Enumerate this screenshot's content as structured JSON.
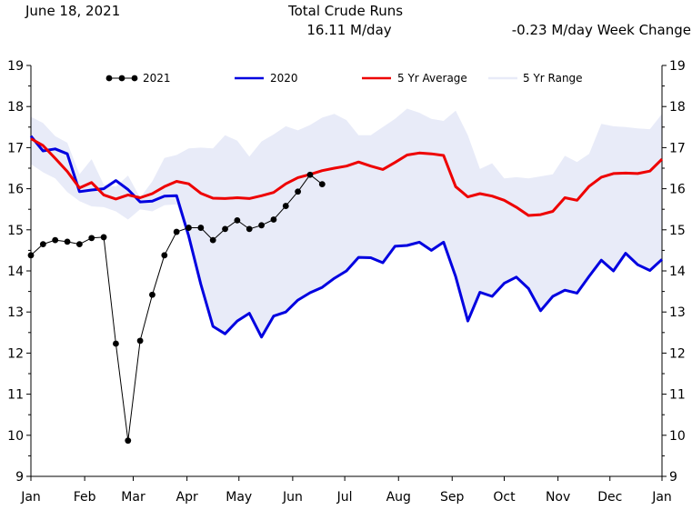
{
  "header": {
    "date": "June 18, 2021",
    "title": "Total Crude Runs",
    "value": "16.11 M/day",
    "week_change": "-0.23 M/day Week Change"
  },
  "chart_data": {
    "type": "line",
    "title": "Total Crude Runs",
    "xlabel": "",
    "ylabel": "",
    "x_range_weeks": [
      0,
      52
    ],
    "ylim": [
      9,
      19
    ],
    "yticks": [
      9,
      10,
      11,
      12,
      13,
      14,
      15,
      16,
      17,
      18,
      19
    ],
    "month_ticks": [
      {
        "label": "Jan",
        "week": 0
      },
      {
        "label": "Feb",
        "week": 4.43
      },
      {
        "label": "Mar",
        "week": 8.43
      },
      {
        "label": "Apr",
        "week": 12.86
      },
      {
        "label": "May",
        "week": 17.14
      },
      {
        "label": "Jun",
        "week": 21.57
      },
      {
        "label": "Jul",
        "week": 25.86
      },
      {
        "label": "Aug",
        "week": 30.29
      },
      {
        "label": "Sep",
        "week": 34.71
      },
      {
        "label": "Oct",
        "week": 39.0
      },
      {
        "label": "Nov",
        "week": 43.43
      },
      {
        "label": "Dec",
        "week": 47.71
      },
      {
        "label": "Jan",
        "week": 52.14
      }
    ],
    "legend": [
      "2021",
      "2020",
      "5 Yr Average",
      "5 Yr Range"
    ],
    "legend_position": "top",
    "colors": {
      "y2021": "#000000",
      "y2020": "#0000e0",
      "avg": "#ee0000",
      "range": "#e8ebf8"
    },
    "series": [
      {
        "name": "2021",
        "x": [
          0,
          1,
          2,
          3,
          4,
          5,
          6,
          7,
          8,
          9,
          10,
          11,
          12,
          13,
          14,
          15,
          16,
          17,
          18,
          19,
          20,
          21,
          22,
          23,
          24
        ],
        "values": [
          14.38,
          14.65,
          14.75,
          14.71,
          14.65,
          14.8,
          14.82,
          12.23,
          9.87,
          12.3,
          13.42,
          14.38,
          14.95,
          15.05,
          15.05,
          14.75,
          15.02,
          15.23,
          15.02,
          15.11,
          15.25,
          15.58,
          15.93,
          16.34,
          16.11
        ]
      },
      {
        "name": "2020",
        "x": [
          0,
          1,
          2,
          3,
          4,
          5,
          6,
          7,
          8,
          9,
          10,
          11,
          12,
          13,
          14,
          15,
          16,
          17,
          18,
          19,
          20,
          21,
          22,
          23,
          24,
          25,
          26,
          27,
          28,
          29,
          30,
          31,
          32,
          33,
          34,
          35,
          36,
          37,
          38,
          39,
          40,
          41,
          42,
          43,
          44,
          45,
          46,
          47,
          48,
          49,
          50,
          51,
          52
        ],
        "values": [
          17.28,
          16.92,
          16.97,
          16.85,
          15.93,
          15.97,
          16.0,
          16.2,
          15.98,
          15.68,
          15.7,
          15.82,
          15.83,
          14.85,
          13.68,
          12.65,
          12.47,
          12.78,
          12.97,
          12.39,
          12.9,
          13.0,
          13.29,
          13.47,
          13.6,
          13.82,
          14.0,
          14.33,
          14.32,
          14.2,
          14.6,
          14.62,
          14.7,
          14.5,
          14.7,
          13.86,
          12.78,
          13.48,
          13.38,
          13.7,
          13.85,
          13.57,
          13.03,
          13.38,
          13.53,
          13.46,
          13.87,
          14.26,
          14.0,
          14.43,
          14.15,
          14.01,
          14.28
        ]
      },
      {
        "name": "5 Yr Average",
        "x": [
          0,
          1,
          2,
          3,
          4,
          5,
          6,
          7,
          8,
          9,
          10,
          11,
          12,
          13,
          14,
          15,
          16,
          17,
          18,
          19,
          20,
          21,
          22,
          23,
          24,
          25,
          26,
          27,
          28,
          29,
          30,
          31,
          32,
          33,
          34,
          35,
          36,
          37,
          38,
          39,
          40,
          41,
          42,
          43,
          44,
          45,
          46,
          47,
          48,
          49,
          50,
          51,
          52
        ],
        "values": [
          17.22,
          17.05,
          16.74,
          16.42,
          16.02,
          16.15,
          15.85,
          15.75,
          15.85,
          15.78,
          15.88,
          16.05,
          16.18,
          16.12,
          15.89,
          15.77,
          15.76,
          15.78,
          15.76,
          15.83,
          15.91,
          16.12,
          16.27,
          16.35,
          16.44,
          16.5,
          16.55,
          16.65,
          16.55,
          16.47,
          16.64,
          16.82,
          16.87,
          16.85,
          16.81,
          16.05,
          15.8,
          15.88,
          15.82,
          15.72,
          15.55,
          15.35,
          15.37,
          15.45,
          15.78,
          15.72,
          16.06,
          16.28,
          16.37,
          16.38,
          16.37,
          16.43,
          16.72
        ]
      },
      {
        "name": "5 Yr Range",
        "x": [
          0,
          1,
          2,
          3,
          4,
          5,
          6,
          7,
          8,
          9,
          10,
          11,
          12,
          13,
          14,
          15,
          16,
          17,
          18,
          19,
          20,
          21,
          22,
          23,
          24,
          25,
          26,
          27,
          28,
          29,
          30,
          31,
          32,
          33,
          34,
          35,
          36,
          37,
          38,
          39,
          40,
          41,
          42,
          43,
          44,
          45,
          46,
          47,
          48,
          49,
          50,
          51,
          52
        ],
        "upper": [
          17.75,
          17.6,
          17.28,
          17.12,
          16.35,
          16.72,
          16.1,
          16.05,
          16.32,
          15.78,
          16.18,
          16.75,
          16.82,
          16.98,
          17.0,
          16.98,
          17.3,
          17.17,
          16.78,
          17.15,
          17.32,
          17.52,
          17.42,
          17.55,
          17.73,
          17.82,
          17.67,
          17.3,
          17.3,
          17.5,
          17.7,
          17.95,
          17.85,
          17.7,
          17.65,
          17.9,
          17.3,
          16.48,
          16.62,
          16.25,
          16.28,
          16.25,
          16.3,
          16.35,
          16.8,
          16.65,
          16.85,
          17.58,
          17.52,
          17.5,
          17.47,
          17.45,
          17.82
        ],
        "lower": [
          16.6,
          16.4,
          16.25,
          15.92,
          15.7,
          15.57,
          15.55,
          15.45,
          15.25,
          15.5,
          15.45,
          15.6,
          15.62,
          14.8,
          13.65,
          12.65,
          12.47,
          12.78,
          12.97,
          12.39,
          12.9,
          13.0,
          13.29,
          13.47,
          13.6,
          13.82,
          14.0,
          14.33,
          14.32,
          14.2,
          14.6,
          14.62,
          14.7,
          14.5,
          14.7,
          13.86,
          12.78,
          13.48,
          13.38,
          13.7,
          13.85,
          13.57,
          13.03,
          13.38,
          13.53,
          13.46,
          13.87,
          14.26,
          14.0,
          14.43,
          14.15,
          14.01,
          14.28
        ]
      }
    ]
  }
}
